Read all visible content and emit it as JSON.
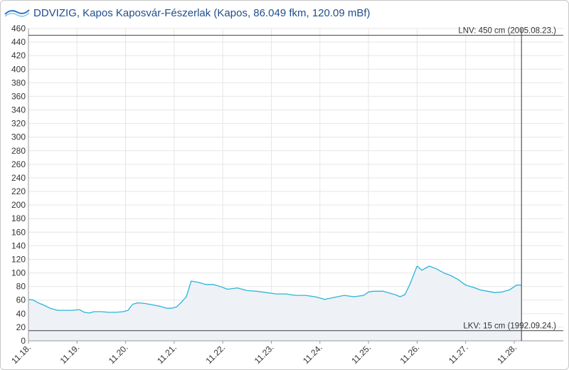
{
  "header": {
    "org": "DDVIZIG",
    "title": "DDVIZIG, Kapos Kaposvár-Fészerlak (Kapos, 86.049 fkm, 120.09 mBf)",
    "logo_icon": "ddvizig-logo-icon"
  },
  "colors": {
    "line": "#2bb5d8",
    "area": "#eef1f6",
    "grid": "#e6e6e6",
    "ref_line": "#555555",
    "title": "#1f4e8c"
  },
  "chart_data": {
    "type": "area",
    "title": "",
    "xlabel": "",
    "ylabel": "",
    "ylim": [
      0,
      460
    ],
    "yticks": [
      0,
      20,
      40,
      60,
      80,
      100,
      120,
      140,
      160,
      180,
      200,
      220,
      240,
      260,
      280,
      300,
      320,
      340,
      360,
      380,
      400,
      420,
      440,
      460
    ],
    "xlim": [
      0,
      10.8
    ],
    "x_tick_values": [
      0,
      1,
      2,
      3,
      4,
      5,
      6,
      7,
      8,
      9,
      10
    ],
    "x_tick_labels": [
      "11.18.",
      "11.19.",
      "11.20.",
      "11.21.",
      "11.22.",
      "11.23.",
      "11.24.",
      "11.25.",
      "11.26.",
      "11.27.",
      "11.28."
    ],
    "grid": true,
    "now_marker_x": 10.15,
    "reference_lines": [
      {
        "value": 450,
        "label": "LNV: 450 cm (2005.08.23.)"
      },
      {
        "value": 15,
        "label": "LKV: 15 cm (1992.09.24.)"
      }
    ],
    "series": [
      {
        "x": [
          0,
          0.1,
          0.2,
          0.3,
          0.45,
          0.6,
          0.75,
          0.9,
          1.05,
          1.15,
          1.25,
          1.35,
          1.5,
          1.65,
          1.8,
          1.95,
          2.05,
          2.1,
          2.15,
          2.25,
          2.4,
          2.55,
          2.7,
          2.85,
          2.95,
          3.05,
          3.15,
          3.25,
          3.35,
          3.5,
          3.65,
          3.8,
          3.95,
          4.1,
          4.3,
          4.5,
          4.7,
          4.9,
          5.1,
          5.3,
          5.5,
          5.7,
          5.9,
          6.1,
          6.3,
          6.5,
          6.7,
          6.9,
          7.0,
          7.1,
          7.3,
          7.45,
          7.55,
          7.65,
          7.75,
          7.85,
          8.0,
          8.1,
          8.25,
          8.4,
          8.55,
          8.7,
          8.85,
          9.0,
          9.15,
          9.3,
          9.45,
          9.6,
          9.75,
          9.9,
          10.05,
          10.15
        ],
        "y": [
          61,
          60,
          56,
          53,
          48,
          45,
          45,
          45,
          46,
          42,
          41,
          43,
          43,
          42,
          42,
          43,
          45,
          50,
          54,
          56,
          55,
          53,
          51,
          48,
          48,
          50,
          57,
          65,
          88,
          86,
          83,
          83,
          80,
          76,
          78,
          74,
          73,
          71,
          69,
          69,
          67,
          67,
          65,
          61,
          64,
          67,
          65,
          67,
          72,
          73,
          73,
          70,
          68,
          65,
          68,
          83,
          110,
          104,
          110,
          106,
          100,
          96,
          90,
          82,
          79,
          75,
          73,
          71,
          72,
          75,
          82,
          82
        ]
      }
    ]
  }
}
